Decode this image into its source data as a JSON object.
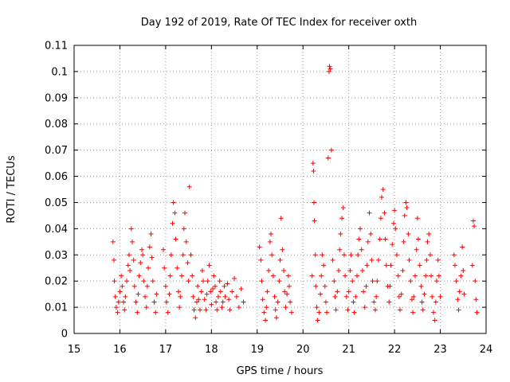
{
  "chart_data": {
    "type": "scatter",
    "title": "Day 192 of 2019, Rate Of TEC Index for receiver oxth",
    "xlabel": "GPS time / hours",
    "ylabel": "ROTI / TECUs",
    "xlim": [
      15,
      24
    ],
    "ylim": [
      0,
      0.11
    ],
    "xticks": [
      "15",
      "16",
      "17",
      "18",
      "19",
      "20",
      "21",
      "22",
      "23",
      "24"
    ],
    "yticks": [
      "0",
      "0.01",
      "0.02",
      "0.03",
      "0.04",
      "0.05",
      "0.06",
      "0.07",
      "0.08",
      "0.09",
      "0.1",
      "0.11"
    ],
    "grid": true,
    "marker": "+",
    "color": "#ff0000",
    "series": [
      {
        "name": "ROTI",
        "points": [
          [
            15.85,
            0.035
          ],
          [
            15.87,
            0.028
          ],
          [
            15.88,
            0.02
          ],
          [
            15.9,
            0.014
          ],
          [
            15.92,
            0.01
          ],
          [
            15.95,
            0.008
          ],
          [
            15.97,
            0.012
          ],
          [
            16.0,
            0.016
          ],
          [
            16.03,
            0.022
          ],
          [
            16.05,
            0.018
          ],
          [
            16.08,
            0.012
          ],
          [
            16.1,
            0.009
          ],
          [
            16.12,
            0.014
          ],
          [
            16.15,
            0.02
          ],
          [
            16.18,
            0.026
          ],
          [
            16.2,
            0.03
          ],
          [
            16.22,
            0.024
          ],
          [
            16.25,
            0.04
          ],
          [
            16.27,
            0.035
          ],
          [
            16.3,
            0.028
          ],
          [
            16.32,
            0.018
          ],
          [
            16.35,
            0.012
          ],
          [
            16.38,
            0.008
          ],
          [
            16.4,
            0.015
          ],
          [
            16.42,
            0.022
          ],
          [
            16.45,
            0.027
          ],
          [
            16.48,
            0.032
          ],
          [
            16.5,
            0.03
          ],
          [
            16.52,
            0.02
          ],
          [
            16.55,
            0.014
          ],
          [
            16.58,
            0.01
          ],
          [
            16.6,
            0.018
          ],
          [
            16.62,
            0.025
          ],
          [
            16.65,
            0.033
          ],
          [
            16.68,
            0.038
          ],
          [
            16.7,
            0.029
          ],
          [
            16.72,
            0.02
          ],
          [
            16.75,
            0.012
          ],
          [
            16.78,
            0.008
          ],
          [
            16.8,
            0.015
          ],
          [
            16.95,
            0.032
          ],
          [
            16.97,
            0.025
          ],
          [
            17.0,
            0.018
          ],
          [
            17.02,
            0.012
          ],
          [
            17.05,
            0.008
          ],
          [
            17.08,
            0.015
          ],
          [
            17.1,
            0.022
          ],
          [
            17.12,
            0.03
          ],
          [
            17.15,
            0.042
          ],
          [
            17.17,
            0.05
          ],
          [
            17.2,
            0.046
          ],
          [
            17.22,
            0.036
          ],
          [
            17.25,
            0.025
          ],
          [
            17.28,
            0.016
          ],
          [
            17.3,
            0.01
          ],
          [
            17.32,
            0.014
          ],
          [
            17.35,
            0.022
          ],
          [
            17.38,
            0.03
          ],
          [
            17.4,
            0.04
          ],
          [
            17.42,
            0.046
          ],
          [
            17.45,
            0.035
          ],
          [
            17.48,
            0.027
          ],
          [
            17.5,
            0.02
          ],
          [
            17.52,
            0.056
          ],
          [
            17.55,
            0.03
          ],
          [
            17.58,
            0.022
          ],
          [
            17.6,
            0.014
          ],
          [
            17.62,
            0.009
          ],
          [
            17.65,
            0.006
          ],
          [
            17.68,
            0.012
          ],
          [
            17.7,
            0.018
          ],
          [
            17.72,
            0.013
          ],
          [
            17.75,
            0.009
          ],
          [
            17.78,
            0.016
          ],
          [
            17.8,
            0.024
          ],
          [
            17.82,
            0.02
          ],
          [
            17.85,
            0.013
          ],
          [
            17.88,
            0.009
          ],
          [
            17.9,
            0.015
          ],
          [
            17.92,
            0.02
          ],
          [
            17.95,
            0.026
          ],
          [
            17.98,
            0.016
          ],
          [
            18.0,
            0.011
          ],
          [
            18.03,
            0.017
          ],
          [
            18.05,
            0.022
          ],
          [
            18.08,
            0.018
          ],
          [
            18.1,
            0.012
          ],
          [
            18.12,
            0.009
          ],
          [
            18.15,
            0.014
          ],
          [
            18.18,
            0.02
          ],
          [
            18.2,
            0.016
          ],
          [
            18.23,
            0.01
          ],
          [
            18.25,
            0.012
          ],
          [
            18.28,
            0.018
          ],
          [
            18.3,
            0.014
          ],
          [
            18.35,
            0.019
          ],
          [
            18.38,
            0.013
          ],
          [
            18.4,
            0.009
          ],
          [
            18.45,
            0.016
          ],
          [
            18.5,
            0.021
          ],
          [
            18.55,
            0.014
          ],
          [
            18.6,
            0.01
          ],
          [
            18.65,
            0.017
          ],
          [
            18.7,
            0.012
          ],
          [
            19.05,
            0.033
          ],
          [
            19.08,
            0.028
          ],
          [
            19.1,
            0.02
          ],
          [
            19.12,
            0.013
          ],
          [
            19.15,
            0.008
          ],
          [
            19.18,
            0.005
          ],
          [
            19.2,
            0.01
          ],
          [
            19.22,
            0.016
          ],
          [
            19.25,
            0.024
          ],
          [
            19.28,
            0.035
          ],
          [
            19.3,
            0.038
          ],
          [
            19.32,
            0.03
          ],
          [
            19.35,
            0.022
          ],
          [
            19.38,
            0.014
          ],
          [
            19.4,
            0.009
          ],
          [
            19.42,
            0.006
          ],
          [
            19.45,
            0.012
          ],
          [
            19.48,
            0.02
          ],
          [
            19.5,
            0.028
          ],
          [
            19.52,
            0.044
          ],
          [
            19.55,
            0.032
          ],
          [
            19.58,
            0.024
          ],
          [
            19.6,
            0.016
          ],
          [
            19.62,
            0.01
          ],
          [
            19.65,
            0.015
          ],
          [
            19.68,
            0.022
          ],
          [
            19.7,
            0.018
          ],
          [
            19.72,
            0.012
          ],
          [
            19.75,
            0.008
          ],
          [
            20.2,
            0.022
          ],
          [
            20.22,
            0.065
          ],
          [
            20.23,
            0.062
          ],
          [
            20.24,
            0.05
          ],
          [
            20.25,
            0.043
          ],
          [
            20.27,
            0.03
          ],
          [
            20.28,
            0.018
          ],
          [
            20.3,
            0.01
          ],
          [
            20.32,
            0.005
          ],
          [
            20.35,
            0.008
          ],
          [
            20.38,
            0.015
          ],
          [
            20.4,
            0.022
          ],
          [
            20.42,
            0.03
          ],
          [
            20.45,
            0.026
          ],
          [
            20.48,
            0.018
          ],
          [
            20.5,
            0.012
          ],
          [
            20.52,
            0.008
          ],
          [
            20.55,
            0.067
          ],
          [
            20.57,
            0.1
          ],
          [
            20.58,
            0.102
          ],
          [
            20.6,
            0.101
          ],
          [
            20.62,
            0.07
          ],
          [
            20.65,
            0.028
          ],
          [
            20.68,
            0.02
          ],
          [
            20.7,
            0.014
          ],
          [
            20.72,
            0.009
          ],
          [
            20.75,
            0.016
          ],
          [
            20.78,
            0.024
          ],
          [
            20.8,
            0.032
          ],
          [
            20.82,
            0.038
          ],
          [
            20.85,
            0.044
          ],
          [
            20.88,
            0.048
          ],
          [
            20.9,
            0.03
          ],
          [
            20.92,
            0.022
          ],
          [
            20.95,
            0.014
          ],
          [
            20.98,
            0.009
          ],
          [
            21.0,
            0.016
          ],
          [
            21.03,
            0.024
          ],
          [
            21.05,
            0.03
          ],
          [
            21.08,
            0.02
          ],
          [
            21.1,
            0.012
          ],
          [
            21.12,
            0.008
          ],
          [
            21.15,
            0.014
          ],
          [
            21.18,
            0.022
          ],
          [
            21.2,
            0.03
          ],
          [
            21.22,
            0.036
          ],
          [
            21.25,
            0.04
          ],
          [
            21.28,
            0.032
          ],
          [
            21.3,
            0.024
          ],
          [
            21.32,
            0.016
          ],
          [
            21.35,
            0.01
          ],
          [
            21.38,
            0.018
          ],
          [
            21.4,
            0.026
          ],
          [
            21.42,
            0.035
          ],
          [
            21.45,
            0.046
          ],
          [
            21.48,
            0.038
          ],
          [
            21.5,
            0.028
          ],
          [
            21.52,
            0.02
          ],
          [
            21.55,
            0.012
          ],
          [
            21.58,
            0.009
          ],
          [
            21.6,
            0.014
          ],
          [
            21.62,
            0.02
          ],
          [
            21.65,
            0.028
          ],
          [
            21.68,
            0.036
          ],
          [
            21.7,
            0.044
          ],
          [
            21.72,
            0.052
          ],
          [
            21.75,
            0.055
          ],
          [
            21.78,
            0.046
          ],
          [
            21.8,
            0.036
          ],
          [
            21.82,
            0.026
          ],
          [
            21.85,
            0.018
          ],
          [
            21.88,
            0.012
          ],
          [
            21.9,
            0.018
          ],
          [
            21.92,
            0.026
          ],
          [
            21.95,
            0.034
          ],
          [
            21.98,
            0.042
          ],
          [
            22.0,
            0.047
          ],
          [
            22.02,
            0.04
          ],
          [
            22.05,
            0.03
          ],
          [
            22.08,
            0.022
          ],
          [
            22.1,
            0.014
          ],
          [
            22.12,
            0.009
          ],
          [
            22.15,
            0.015
          ],
          [
            22.18,
            0.024
          ],
          [
            22.2,
            0.035
          ],
          [
            22.22,
            0.045
          ],
          [
            22.25,
            0.05
          ],
          [
            22.27,
            0.048
          ],
          [
            22.3,
            0.038
          ],
          [
            22.32,
            0.028
          ],
          [
            22.35,
            0.02
          ],
          [
            22.38,
            0.013
          ],
          [
            22.4,
            0.008
          ],
          [
            22.42,
            0.014
          ],
          [
            22.45,
            0.022
          ],
          [
            22.48,
            0.032
          ],
          [
            22.5,
            0.044
          ],
          [
            22.52,
            0.036
          ],
          [
            22.55,
            0.026
          ],
          [
            22.58,
            0.018
          ],
          [
            22.6,
            0.012
          ],
          [
            22.62,
            0.009
          ],
          [
            22.65,
            0.015
          ],
          [
            22.68,
            0.022
          ],
          [
            22.7,
            0.028
          ],
          [
            22.72,
            0.035
          ],
          [
            22.75,
            0.038
          ],
          [
            22.78,
            0.03
          ],
          [
            22.8,
            0.022
          ],
          [
            22.82,
            0.014
          ],
          [
            22.85,
            0.008
          ],
          [
            22.88,
            0.005
          ],
          [
            22.9,
            0.012
          ],
          [
            22.92,
            0.02
          ],
          [
            22.95,
            0.028
          ],
          [
            22.97,
            0.022
          ],
          [
            23.0,
            0.014
          ],
          [
            23.3,
            0.03
          ],
          [
            23.32,
            0.026
          ],
          [
            23.35,
            0.02
          ],
          [
            23.38,
            0.013
          ],
          [
            23.4,
            0.009
          ],
          [
            23.42,
            0.016
          ],
          [
            23.45,
            0.022
          ],
          [
            23.48,
            0.033
          ],
          [
            23.5,
            0.024
          ],
          [
            23.52,
            0.015
          ],
          [
            23.7,
            0.026
          ],
          [
            23.72,
            0.043
          ],
          [
            23.74,
            0.041
          ],
          [
            23.76,
            0.02
          ],
          [
            23.78,
            0.013
          ],
          [
            23.8,
            0.008
          ]
        ]
      }
    ]
  }
}
